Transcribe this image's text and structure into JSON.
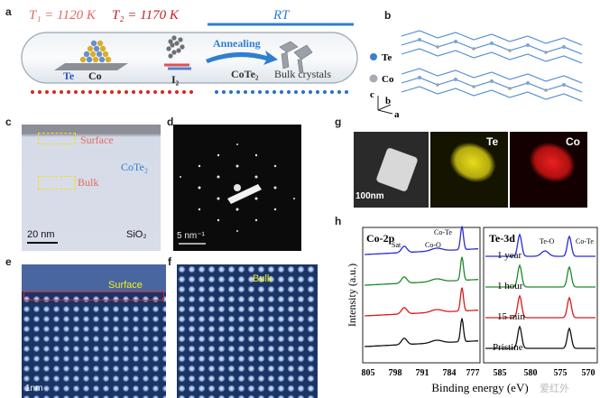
{
  "panels": {
    "a": {
      "label": "a",
      "t1": "T₁ = 1120 K",
      "t2": "T₂ = 1170 K",
      "rt": "RT",
      "te": "Te",
      "co": "Co",
      "i2": "I₂",
      "annealing": "Annealing",
      "cote2": "CoTe₂",
      "bulk": "Bulk crystals"
    },
    "b": {
      "label": "b",
      "legend_te": "Te",
      "legend_co": "Co",
      "axis_c": "c",
      "axis_b": "b",
      "axis_a": "a"
    },
    "c": {
      "label": "c",
      "surface": "Surface",
      "cote2": "CoTe₂",
      "bulk": "Bulk",
      "scale": "20 nm",
      "sio2": "SiO₂"
    },
    "d": {
      "label": "d",
      "scale": "5 nm⁻¹"
    },
    "e": {
      "label": "e",
      "surface": "Surface",
      "scale": "1nm"
    },
    "f": {
      "label": "f",
      "bulk": "Bulk"
    },
    "g": {
      "label": "g",
      "scale": "100nm",
      "te": "Te",
      "co": "Co"
    },
    "h": {
      "label": "h",
      "co2p": "Co-2p",
      "te3d": "Te-3d",
      "sat": "Sat",
      "coo": "Co-O",
      "cote_left": "Co-Te",
      "teo": "Te-O",
      "cote_right": "Co-Te",
      "ylabel": "Intensity (a.u.)",
      "xlabel": "Binding energy (eV)",
      "xticks_left": [
        "805",
        "798",
        "791",
        "784",
        "777"
      ],
      "xticks_right": [
        "585",
        "580",
        "575",
        "570"
      ],
      "times": [
        "1 year",
        "1 hour",
        "15 min",
        "Pristine"
      ],
      "colors": [
        "#2a2ad8",
        "#1e8a2a",
        "#d81b1b",
        "#111111"
      ]
    }
  },
  "watermark": "爱红外"
}
